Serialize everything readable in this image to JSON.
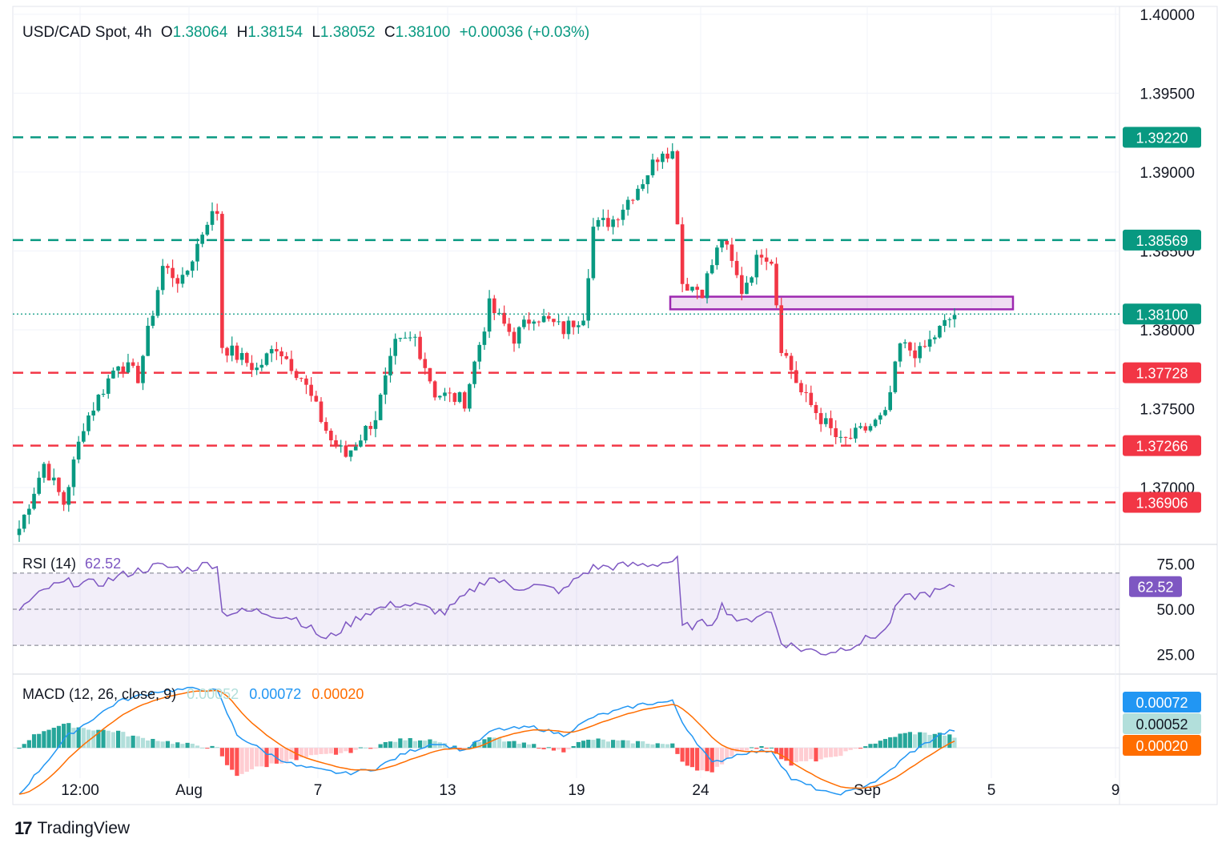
{
  "header": {
    "symbol": "USD/CAD Spot, 4h",
    "o_label": "O",
    "o_value": "1.38064",
    "h_label": "H",
    "h_value": "1.38154",
    "l_label": "L",
    "l_value": "1.38052",
    "c_label": "C",
    "c_value": "1.38100",
    "change": "+0.00036 (+0.03%)"
  },
  "rsi": {
    "label": "RSI (14)",
    "value": "62.52"
  },
  "macd": {
    "label": "MACD (12, 26, close, 9)",
    "hist": "0.00052",
    "macd": "0.00072",
    "signal": "0.00020"
  },
  "brand": {
    "logo": "17",
    "name": "TradingView"
  },
  "colors": {
    "up": "#089981",
    "down": "#f23645",
    "rsi": "#7e57c2",
    "macd": "#2196f3",
    "signal": "#ff6d00",
    "zone": "#9c27b0"
  },
  "chart_data": [
    {
      "type": "candlestick",
      "title": "USD/CAD Spot, 4h",
      "x_ticks": [
        "12:00",
        "Aug",
        "7",
        "13",
        "19",
        "24",
        "Sep",
        "5",
        "9"
      ],
      "y_ticks": [
        "1.37000",
        "1.37500",
        "1.38000",
        "1.38500",
        "1.39000",
        "1.39500",
        "1.40000"
      ],
      "ylim": [
        1.3665,
        1.4005
      ],
      "current_price": "1.38100",
      "resistance_levels": [
        "1.39220",
        "1.38569"
      ],
      "support_levels": [
        "1.37728",
        "1.37266",
        "1.36906"
      ],
      "resistance_zone": [
        1.3813,
        1.3821
      ],
      "waypoints": [
        [
          0,
          1.3674
        ],
        [
          5,
          1.3715
        ],
        [
          9,
          1.369
        ],
        [
          13,
          1.374
        ],
        [
          20,
          1.378
        ],
        [
          24,
          1.377
        ],
        [
          29,
          1.384
        ],
        [
          33,
          1.383
        ],
        [
          38,
          1.387
        ],
        [
          40,
          1.3875
        ],
        [
          41,
          1.379
        ],
        [
          48,
          1.3775
        ],
        [
          52,
          1.379
        ],
        [
          57,
          1.377
        ],
        [
          63,
          1.373
        ],
        [
          66,
          1.372
        ],
        [
          72,
          1.3745
        ],
        [
          76,
          1.379
        ],
        [
          80,
          1.3795
        ],
        [
          84,
          1.376
        ],
        [
          90,
          1.3755
        ],
        [
          95,
          1.3815
        ],
        [
          100,
          1.3795
        ],
        [
          104,
          1.381
        ],
        [
          110,
          1.38
        ],
        [
          114,
          1.381
        ],
        [
          116,
          1.3865
        ],
        [
          120,
          1.387
        ],
        [
          126,
          1.3895
        ],
        [
          130,
          1.3915
        ],
        [
          132,
          1.3912
        ],
        [
          134,
          1.383
        ],
        [
          138,
          1.3825
        ],
        [
          142,
          1.3858
        ],
        [
          146,
          1.3825
        ],
        [
          150,
          1.385
        ],
        [
          152,
          1.3845
        ],
        [
          154,
          1.379
        ],
        [
          158,
          1.376
        ],
        [
          163,
          1.374
        ],
        [
          166,
          1.3728
        ],
        [
          170,
          1.3735
        ],
        [
          175,
          1.3745
        ],
        [
          178,
          1.379
        ],
        [
          182,
          1.3785
        ],
        [
          186,
          1.38
        ],
        [
          189,
          1.381
        ]
      ],
      "rsi": {
        "label": "RSI (14)",
        "ylim": [
          15,
          85
        ],
        "y_ticks": [
          "25.00",
          "50.00",
          "75.00"
        ],
        "band": [
          30,
          70
        ],
        "value": "62.52",
        "waypoints": [
          [
            0,
            50
          ],
          [
            6,
            62
          ],
          [
            10,
            65
          ],
          [
            16,
            64
          ],
          [
            22,
            70
          ],
          [
            28,
            74
          ],
          [
            34,
            72
          ],
          [
            38,
            75
          ],
          [
            40,
            75
          ],
          [
            41,
            48
          ],
          [
            48,
            49
          ],
          [
            56,
            45
          ],
          [
            62,
            33
          ],
          [
            63,
            35
          ],
          [
            70,
            48
          ],
          [
            76,
            53
          ],
          [
            80,
            52
          ],
          [
            86,
            48
          ],
          [
            95,
            68
          ],
          [
            100,
            62
          ],
          [
            104,
            63
          ],
          [
            110,
            60
          ],
          [
            113,
            68
          ],
          [
            116,
            73
          ],
          [
            128,
            75
          ],
          [
            133,
            77
          ],
          [
            134,
            40
          ],
          [
            140,
            43
          ],
          [
            142,
            52
          ],
          [
            146,
            42
          ],
          [
            150,
            48
          ],
          [
            152,
            48
          ],
          [
            154,
            32
          ],
          [
            158,
            28
          ],
          [
            163,
            26
          ],
          [
            166,
            28
          ],
          [
            170,
            32
          ],
          [
            175,
            38
          ],
          [
            178,
            55
          ],
          [
            182,
            58
          ],
          [
            186,
            60
          ],
          [
            189,
            62.5
          ]
        ]
      },
      "macd": {
        "label": "MACD (12, 26, close, 9)",
        "ylim": [
          -0.0022,
          0.0028
        ],
        "hist": "0.00052",
        "macd": "0.00072",
        "signal": "0.00020",
        "waypoints": [
          [
            0,
            -0.0018
          ],
          [
            10,
            0.0005
          ],
          [
            20,
            0.0018
          ],
          [
            28,
            0.0022
          ],
          [
            36,
            0.0023
          ],
          [
            40,
            0.0022
          ],
          [
            44,
            0.0005
          ],
          [
            50,
            -0.0002
          ],
          [
            56,
            -0.0007
          ],
          [
            62,
            -0.0009
          ],
          [
            66,
            -0.001
          ],
          [
            72,
            -0.0008
          ],
          [
            78,
            -0.0002
          ],
          [
            84,
            0.0002
          ],
          [
            90,
            -0.0001
          ],
          [
            96,
            0.0007
          ],
          [
            104,
            0.0008
          ],
          [
            110,
            0.0005
          ],
          [
            116,
            0.0012
          ],
          [
            126,
            0.0017
          ],
          [
            132,
            0.0018
          ],
          [
            134,
            0.001
          ],
          [
            140,
            -0.0006
          ],
          [
            146,
            -0.0002
          ],
          [
            152,
            -0.0001
          ],
          [
            156,
            -0.0012
          ],
          [
            164,
            -0.0018
          ],
          [
            168,
            -0.0017
          ],
          [
            174,
            -0.0012
          ],
          [
            180,
            -0.0002
          ],
          [
            186,
            0.0005
          ],
          [
            189,
            0.0007
          ]
        ]
      }
    }
  ]
}
